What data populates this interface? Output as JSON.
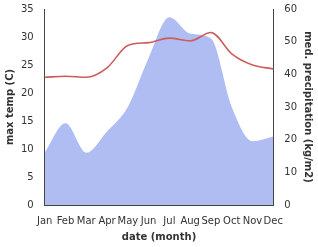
{
  "chart_data": {
    "type": "line",
    "xlabel": "date (month)",
    "categories": [
      "Jan",
      "Feb",
      "Mar",
      "Apr",
      "May",
      "Jun",
      "Jul",
      "Aug",
      "Sep",
      "Oct",
      "Nov",
      "Dec"
    ],
    "series": [
      {
        "name": "max temp (C)",
        "type": "line",
        "color": "#cd5c5c",
        "values": [
          22.8,
          23.0,
          22.8,
          24.5,
          28.5,
          29.0,
          29.8,
          29.3,
          30.8,
          27.0,
          25.0,
          24.3
        ]
      },
      {
        "name": "med. precipitation (kg/m2)",
        "type": "area",
        "axis": "y2",
        "color": "#b0bdf2",
        "values": [
          16,
          25,
          16,
          22.5,
          30,
          45,
          57.5,
          52.5,
          51,
          30,
          19.5,
          21
        ]
      }
    ],
    "ylim": [
      0,
      35
    ],
    "yticks": [
      0,
      5,
      10,
      15,
      20,
      25,
      30,
      35
    ],
    "y2lim": [
      0,
      60
    ],
    "y2ticks": [
      0,
      10,
      20,
      30,
      40,
      50,
      60
    ],
    "grid": false
  }
}
